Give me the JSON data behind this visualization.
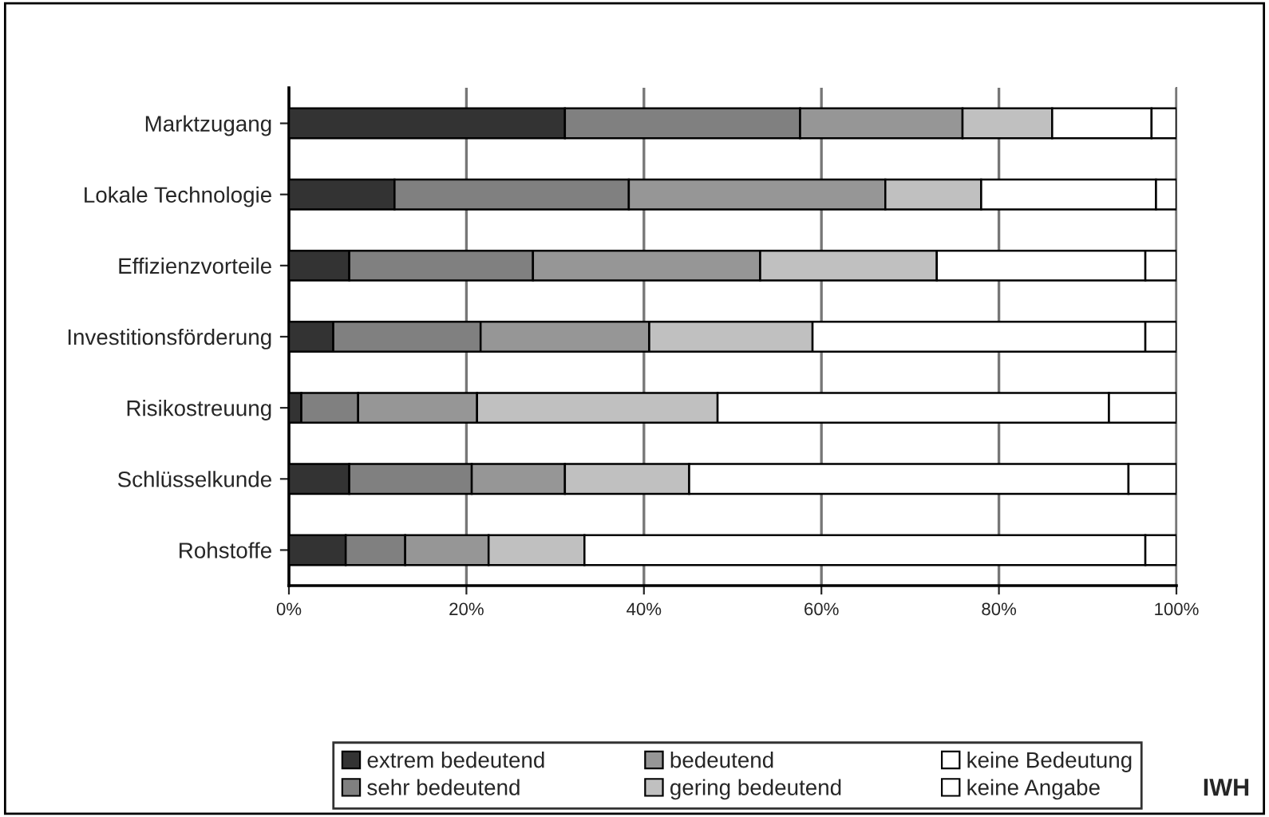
{
  "chart_data": {
    "type": "bar",
    "orientation": "horizontal",
    "stacked": true,
    "categories": [
      "Marktzugang",
      "Lokale Technologie",
      "Effizienzvorteile",
      "Investitionsförderung",
      "Risikostreuung",
      "Schlüsselkunde",
      "Rohstoffe"
    ],
    "series": [
      {
        "name": "extrem bedeutend",
        "color": "#333333",
        "values": [
          31.1,
          11.9,
          6.8,
          5.0,
          1.4,
          6.8,
          6.4
        ]
      },
      {
        "name": "sehr bedeutend",
        "color": "#808080",
        "values": [
          26.5,
          26.4,
          20.7,
          16.6,
          6.4,
          13.8,
          6.7
        ]
      },
      {
        "name": "bedeutend",
        "color": "#969696",
        "values": [
          18.3,
          28.9,
          25.6,
          19.0,
          13.4,
          10.5,
          9.4
        ]
      },
      {
        "name": "gering bedeutend",
        "color": "#c0c0c0",
        "values": [
          10.1,
          10.8,
          19.9,
          18.4,
          27.1,
          14.0,
          10.8
        ]
      },
      {
        "name": "keine Bedeutung",
        "color": "#ffffff",
        "values": [
          11.2,
          19.7,
          23.5,
          37.5,
          44.1,
          49.5,
          63.2
        ]
      },
      {
        "name": "keine Angabe",
        "color": "#ffffff",
        "values": [
          2.8,
          2.3,
          3.5,
          3.5,
          7.6,
          5.4,
          3.5
        ]
      }
    ],
    "xlim": [
      0,
      100
    ],
    "xticks": [
      {
        "value": 0,
        "label": "0%"
      },
      {
        "value": 20,
        "label": "20%"
      },
      {
        "value": 40,
        "label": "40%"
      },
      {
        "value": 60,
        "label": "60%"
      },
      {
        "value": 80,
        "label": "80%"
      },
      {
        "value": 100,
        "label": "100%"
      }
    ],
    "grid": "x",
    "legend": "bottom",
    "annotations": [
      "IWH"
    ]
  }
}
